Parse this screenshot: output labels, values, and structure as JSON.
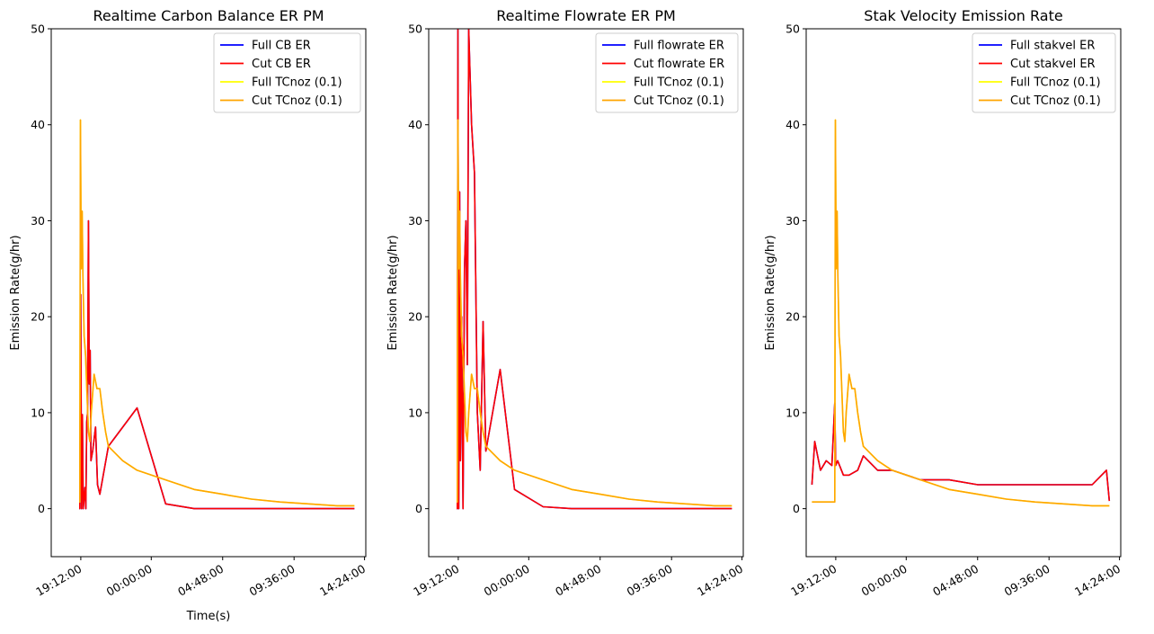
{
  "chart_data": [
    {
      "type": "line",
      "title": "Realtime Carbon Balance ER PM",
      "xlabel": "Time(s)",
      "ylabel": "Emission Rate(g/hr)",
      "ylim": [
        -5,
        50
      ],
      "yticks": [
        0,
        10,
        20,
        30,
        40,
        50
      ],
      "xticks": [
        "19:12:00",
        "00:00:00",
        "04:48:00",
        "09:36:00",
        "14:24:00"
      ],
      "legend_position": "top-right",
      "grid": false,
      "series": [
        {
          "name": "Full CB ER",
          "color": "#0000ff",
          "x": [
            -0.2,
            0.0,
            0.3,
            0.6,
            0.9,
            1.2,
            1.8,
            2.1,
            2.4,
            2.7,
            3.0,
            3.3,
            3.6,
            3.9,
            4.5,
            5.5,
            6.2,
            7.0,
            10.0,
            20.0,
            30.0,
            40.0,
            50.0,
            60.0,
            75.0,
            85.0,
            93.0,
            96.0
          ],
          "values": [
            0,
            0,
            22.3,
            0,
            9.8,
            0,
            2.2,
            0,
            9.0,
            10.0,
            30.0,
            13.0,
            16.5,
            5.0,
            6.0,
            8.5,
            2.5,
            1.5,
            6.5,
            10.5,
            0.5,
            0.0,
            0.0,
            0.0,
            0.0,
            0.0,
            0.0,
            0.0
          ]
        },
        {
          "name": "Cut CB ER",
          "color": "#ff0000",
          "x": [
            -0.2,
            0.0,
            0.3,
            0.6,
            0.9,
            1.2,
            1.8,
            2.1,
            2.4,
            2.7,
            3.0,
            3.3,
            3.6,
            3.9,
            4.5,
            5.5,
            6.2,
            7.0,
            10.0,
            20.0,
            30.0,
            40.0,
            50.0,
            60.0,
            75.0,
            85.0,
            93.0,
            96.0
          ],
          "values": [
            0,
            0,
            22.3,
            0,
            9.8,
            0,
            2.2,
            0,
            9.0,
            10.0,
            30.0,
            13.0,
            16.5,
            5.0,
            6.0,
            8.5,
            2.5,
            1.5,
            6.5,
            10.5,
            0.5,
            0.0,
            0.0,
            0.0,
            0.0,
            0.0,
            0.0,
            0.0
          ]
        },
        {
          "name": "Full TCnoz (0.1)",
          "color": "#ffff00",
          "x": [
            -0.2,
            0.0,
            0.2,
            0.5,
            0.8,
            1.1,
            1.5,
            2.0,
            2.5,
            3.0,
            3.5,
            4.0,
            5.0,
            6.0,
            7.0,
            8.0,
            9.0,
            10.0,
            15.0,
            20.0,
            30.0,
            40.0,
            50.0,
            60.0,
            70.0,
            80.0,
            90.0,
            96.0
          ],
          "values": [
            0.7,
            0.7,
            40.5,
            25.0,
            31.0,
            24.0,
            18.0,
            16.0,
            12.0,
            8.0,
            7.0,
            10.0,
            14.0,
            12.5,
            12.5,
            10.0,
            8.0,
            6.5,
            5.0,
            4.0,
            3.0,
            2.0,
            1.5,
            1.0,
            0.7,
            0.5,
            0.3,
            0.3
          ]
        },
        {
          "name": "Cut TCnoz (0.1)",
          "color": "#ffa500",
          "x": [
            -0.2,
            0.0,
            0.2,
            0.5,
            0.8,
            1.1,
            1.5,
            2.0,
            2.5,
            3.0,
            3.5,
            4.0,
            5.0,
            6.0,
            7.0,
            8.0,
            9.0,
            10.0,
            15.0,
            20.0,
            30.0,
            40.0,
            50.0,
            60.0,
            70.0,
            80.0,
            90.0,
            96.0
          ],
          "values": [
            0.7,
            0.7,
            40.5,
            25.0,
            31.0,
            24.0,
            18.0,
            16.0,
            12.0,
            8.0,
            7.0,
            10.0,
            14.0,
            12.5,
            12.5,
            10.0,
            8.0,
            6.5,
            5.0,
            4.0,
            3.0,
            2.0,
            1.5,
            1.0,
            0.7,
            0.5,
            0.3,
            0.3
          ]
        }
      ]
    },
    {
      "type": "line",
      "title": "Realtime Flowrate ER PM",
      "xlabel": "",
      "ylabel": "Emission Rate(g/hr)",
      "ylim": [
        -5,
        50
      ],
      "yticks": [
        0,
        10,
        20,
        30,
        40,
        50
      ],
      "xticks": [
        "19:12:00",
        "00:00:00",
        "04:48:00",
        "09:36:00",
        "14:24:00"
      ],
      "legend_position": "top-right",
      "grid": false,
      "series": [
        {
          "name": "Full flowrate ER",
          "color": "#0000ff",
          "x": [
            -0.2,
            0.0,
            0.2,
            0.5,
            0.8,
            1.1,
            1.5,
            2.0,
            2.5,
            3.0,
            3.5,
            4.0,
            5.0,
            6.0,
            7.0,
            8.0,
            9.0,
            10.0,
            15.0,
            20.0,
            30.0,
            40.0,
            50.0,
            60.0,
            75.0,
            90.0,
            96.0
          ],
          "values": [
            0,
            0,
            50.0,
            0,
            33.0,
            5.0,
            20.0,
            0,
            25.0,
            30.0,
            15.0,
            50.0,
            40.0,
            35.0,
            10.0,
            4.0,
            19.5,
            6.0,
            14.5,
            2.0,
            0.2,
            0.0,
            0.0,
            0.0,
            0.0,
            0.0,
            0.0
          ]
        },
        {
          "name": "Cut flowrate ER",
          "color": "#ff0000",
          "x": [
            -0.2,
            0.0,
            0.2,
            0.5,
            0.8,
            1.1,
            1.5,
            2.0,
            2.5,
            3.0,
            3.5,
            4.0,
            5.0,
            6.0,
            7.0,
            8.0,
            9.0,
            10.0,
            15.0,
            20.0,
            30.0,
            40.0,
            50.0,
            60.0,
            75.0,
            90.0,
            96.0
          ],
          "values": [
            0,
            0,
            50.0,
            0,
            33.0,
            5.0,
            20.0,
            0,
            25.0,
            30.0,
            15.0,
            50.0,
            40.0,
            35.0,
            10.0,
            4.0,
            19.5,
            6.0,
            14.5,
            2.0,
            0.2,
            0.0,
            0.0,
            0.0,
            0.0,
            0.0,
            0.0
          ]
        },
        {
          "name": "Full TCnoz (0.1)",
          "color": "#ffff00",
          "x": [
            -0.2,
            0.0,
            0.2,
            0.5,
            0.8,
            1.1,
            1.5,
            2.0,
            2.5,
            3.0,
            3.5,
            4.0,
            5.0,
            6.0,
            7.0,
            8.0,
            9.0,
            10.0,
            15.0,
            20.0,
            30.0,
            40.0,
            50.0,
            60.0,
            70.0,
            80.0,
            90.0,
            96.0
          ],
          "values": [
            0.7,
            0.7,
            40.5,
            25.0,
            31.0,
            24.0,
            18.0,
            16.0,
            12.0,
            8.0,
            7.0,
            10.0,
            14.0,
            12.5,
            12.5,
            10.0,
            8.0,
            6.5,
            5.0,
            4.0,
            3.0,
            2.0,
            1.5,
            1.0,
            0.7,
            0.5,
            0.3,
            0.3
          ]
        },
        {
          "name": "Cut TCnoz (0.1)",
          "color": "#ffa500",
          "x": [
            -0.2,
            0.0,
            0.2,
            0.5,
            0.8,
            1.1,
            1.5,
            2.0,
            2.5,
            3.0,
            3.5,
            4.0,
            5.0,
            6.0,
            7.0,
            8.0,
            9.0,
            10.0,
            15.0,
            20.0,
            30.0,
            40.0,
            50.0,
            60.0,
            70.0,
            80.0,
            90.0,
            96.0
          ],
          "values": [
            0.7,
            0.7,
            40.5,
            25.0,
            31.0,
            24.0,
            18.0,
            16.0,
            12.0,
            8.0,
            7.0,
            10.0,
            14.0,
            12.5,
            12.5,
            10.0,
            8.0,
            6.5,
            5.0,
            4.0,
            3.0,
            2.0,
            1.5,
            1.0,
            0.7,
            0.5,
            0.3,
            0.3
          ]
        }
      ]
    },
    {
      "type": "line",
      "title": "Stak Velocity Emission Rate",
      "xlabel": "",
      "ylabel": "Emission Rate(g/hr)",
      "ylim": [
        -5,
        50
      ],
      "yticks": [
        0,
        10,
        20,
        30,
        40,
        50
      ],
      "xticks": [
        "19:12:00",
        "00:00:00",
        "04:48:00",
        "09:36:00",
        "14:24:00"
      ],
      "legend_position": "top-right",
      "grid": false,
      "series": [
        {
          "name": "Full stakvel ER",
          "color": "#0000ff",
          "x": [
            -8.0,
            -7.0,
            -6.0,
            -5.0,
            -3.0,
            -1.0,
            0.0,
            0.3,
            1.0,
            3.0,
            5.0,
            8.0,
            10.0,
            15.0,
            20.0,
            30.0,
            40.0,
            50.0,
            60.0,
            70.0,
            80.0,
            90.0,
            95.0,
            96.0
          ],
          "values": [
            2.5,
            7.0,
            5.5,
            4.0,
            5.0,
            4.5,
            11.0,
            4.5,
            5.0,
            3.5,
            3.5,
            4.0,
            5.5,
            4.0,
            4.0,
            3.0,
            3.0,
            2.5,
            2.5,
            2.5,
            2.5,
            2.5,
            4.0,
            0.8
          ]
        },
        {
          "name": "Cut stakvel ER",
          "color": "#ff0000",
          "x": [
            -8.0,
            -7.0,
            -6.0,
            -5.0,
            -3.0,
            -1.0,
            0.0,
            0.3,
            1.0,
            3.0,
            5.0,
            8.0,
            10.0,
            15.0,
            20.0,
            30.0,
            40.0,
            50.0,
            60.0,
            70.0,
            80.0,
            90.0,
            95.0,
            96.0
          ],
          "values": [
            2.5,
            7.0,
            5.5,
            4.0,
            5.0,
            4.5,
            11.0,
            4.5,
            5.0,
            3.5,
            3.5,
            4.0,
            5.5,
            4.0,
            4.0,
            3.0,
            3.0,
            2.5,
            2.5,
            2.5,
            2.5,
            2.5,
            4.0,
            0.8
          ]
        },
        {
          "name": "Full TCnoz (0.1)",
          "color": "#ffff00",
          "x": [
            -8.0,
            0.0,
            0.2,
            0.5,
            0.8,
            1.1,
            1.5,
            2.0,
            2.5,
            3.0,
            3.5,
            4.0,
            5.0,
            6.0,
            7.0,
            8.0,
            9.0,
            10.0,
            15.0,
            20.0,
            30.0,
            40.0,
            50.0,
            60.0,
            70.0,
            80.0,
            90.0,
            96.0
          ],
          "values": [
            0.7,
            0.7,
            40.5,
            25.0,
            31.0,
            24.0,
            18.0,
            16.0,
            12.0,
            8.0,
            7.0,
            10.0,
            14.0,
            12.5,
            12.5,
            10.0,
            8.0,
            6.5,
            5.0,
            4.0,
            3.0,
            2.0,
            1.5,
            1.0,
            0.7,
            0.5,
            0.3,
            0.3
          ]
        },
        {
          "name": "Cut TCnoz (0.1)",
          "color": "#ffa500",
          "x": [
            -8.0,
            0.0,
            0.2,
            0.5,
            0.8,
            1.1,
            1.5,
            2.0,
            2.5,
            3.0,
            3.5,
            4.0,
            5.0,
            6.0,
            7.0,
            8.0,
            9.0,
            10.0,
            15.0,
            20.0,
            30.0,
            40.0,
            50.0,
            60.0,
            70.0,
            80.0,
            90.0,
            96.0
          ],
          "values": [
            0.7,
            0.7,
            40.5,
            25.0,
            31.0,
            24.0,
            18.0,
            16.0,
            12.0,
            8.0,
            7.0,
            10.0,
            14.0,
            12.5,
            12.5,
            10.0,
            8.0,
            6.5,
            5.0,
            4.0,
            3.0,
            2.0,
            1.5,
            1.0,
            0.7,
            0.5,
            0.3,
            0.3
          ]
        }
      ]
    }
  ]
}
